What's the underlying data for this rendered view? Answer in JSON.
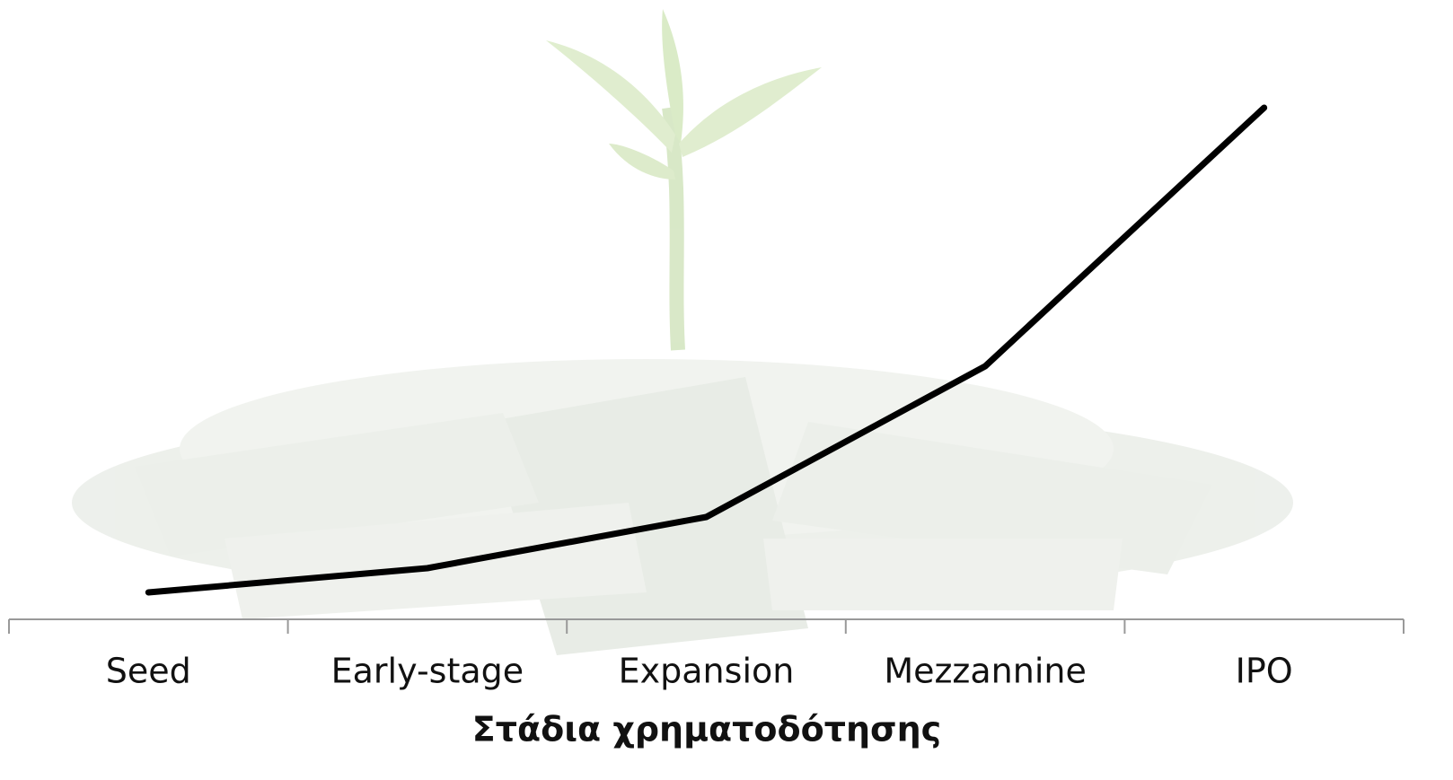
{
  "chart_data": {
    "type": "line",
    "x_label": "Στάδια χρηματοδότησης",
    "categories": [
      "Seed",
      "Early-stage",
      "Expansion",
      "Mezzannine",
      "IPO"
    ],
    "series": [
      {
        "color": "#000000",
        "values": [
          5,
          9.5,
          19,
          47,
          95
        ]
      }
    ],
    "ylim": [
      0,
      100
    ]
  }
}
